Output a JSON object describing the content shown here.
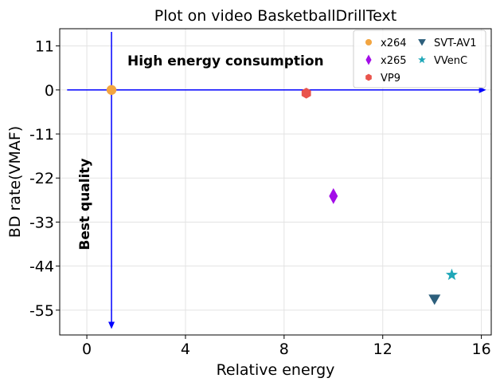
{
  "chart_data": {
    "type": "scatter",
    "title": "Plot on video BasketballDrillText",
    "xlabel": "Relative energy",
    "ylabel": "BD rate(VMAF)",
    "xlim": [
      -1.1,
      16.4
    ],
    "ylim": [
      -61.2,
      15.3
    ],
    "xticks": [
      0,
      4,
      8,
      12,
      16
    ],
    "yticks": [
      11,
      0,
      -11,
      -22,
      -33,
      -44,
      -55
    ],
    "grid": true,
    "legend_position": "top-right",
    "legend_columns": 2,
    "series": [
      {
        "name": "x264",
        "marker": "circle",
        "color": "#f2a541",
        "points": [
          [
            1.0,
            0.0
          ]
        ]
      },
      {
        "name": "x265",
        "marker": "thin_diamond",
        "color": "#a30de8",
        "points": [
          [
            10.0,
            -26.5
          ]
        ]
      },
      {
        "name": "VP9",
        "marker": "hexagon",
        "color": "#e9544c",
        "points": [
          [
            8.9,
            -0.8
          ]
        ]
      },
      {
        "name": "SVT-AV1",
        "marker": "triangle_down",
        "color": "#2d5f7c",
        "points": [
          [
            14.1,
            -52.3
          ]
        ]
      },
      {
        "name": "VVenC",
        "marker": "star",
        "color": "#1fa7b8",
        "points": [
          [
            14.8,
            -46.2
          ]
        ]
      }
    ],
    "annotations": [
      {
        "text": "High energy consumption",
        "orientation": "horizontal",
        "arrow": "x-axis direction (right)"
      },
      {
        "text": "Best quality",
        "orientation": "vertical",
        "arrow": "y-axis direction (down)"
      }
    ],
    "arrow_color": "#0000ff"
  }
}
